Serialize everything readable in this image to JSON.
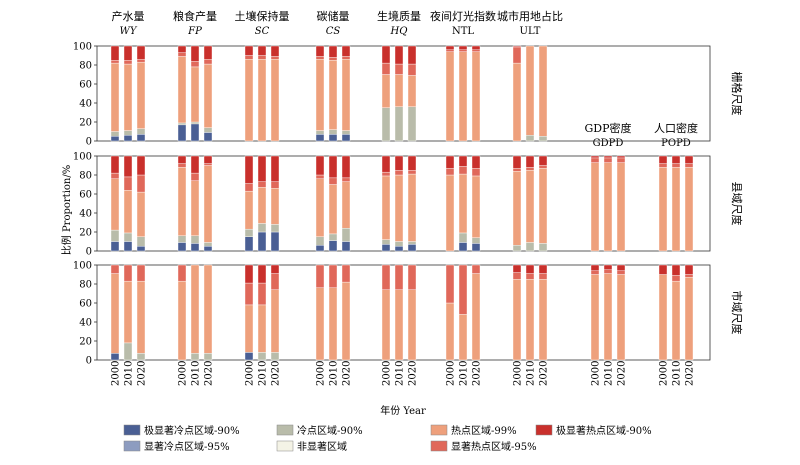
{
  "chart_data": {
    "type": "bar",
    "subtype": "stacked-100",
    "xlabel": "年份 Year",
    "ylabel": "比例 Proportion/%",
    "ylim": [
      0,
      100
    ],
    "yticks": [
      "0",
      "20",
      "40",
      "60",
      "80",
      "100"
    ],
    "years": [
      "2000",
      "2010",
      "2020"
    ],
    "categories_order": [
      "vhc",
      "cold",
      "ns",
      "hot",
      "shot",
      "vhh"
    ],
    "legend": [
      {
        "key": "vhc",
        "label": "极显著冷点区域-90%",
        "color": "#4a5f94"
      },
      {
        "key": "cold",
        "label": "冷点区域-90%",
        "color": "#b9bcaa"
      },
      {
        "key": "hot",
        "label": "热点区域-99%",
        "color": "#eea07c"
      },
      {
        "key": "vhh",
        "label": "极显著热点区域-90%",
        "color": "#c9302c"
      },
      {
        "key": "shc",
        "label": "显著冷点区域-95%",
        "color": "#8d9cc0"
      },
      {
        "key": "ns",
        "label": "非显著区域",
        "color": "#f4f3e6"
      },
      {
        "key": "shot",
        "label": "显著热点区域-95%",
        "color": "#e0685a"
      }
    ],
    "colors": {
      "vhc": "#4a5f94",
      "cold": "#b9bcaa",
      "ns": "#f4f3e6",
      "hot": "#eea07c",
      "shot": "#e0685a",
      "vhh": "#c9302c"
    },
    "columns": [
      {
        "id": "wy",
        "title": "产水量",
        "sub": "WY",
        "italic": true
      },
      {
        "id": "fp",
        "title": "粮食产量",
        "sub": "FP",
        "italic": true
      },
      {
        "id": "sc",
        "title": "土壤保持量",
        "sub": "SC",
        "italic": true
      },
      {
        "id": "cs",
        "title": "碳储量",
        "sub": "CS",
        "italic": true
      },
      {
        "id": "hq",
        "title": "生境质量",
        "sub": "HQ",
        "italic": true
      },
      {
        "id": "ntl",
        "title": "夜间灯光指数",
        "sub": "NTL",
        "italic": false
      },
      {
        "id": "ult",
        "title": "城市用地占比",
        "sub": "ULT",
        "italic": false
      },
      {
        "id": "gdpd",
        "title": "GDP密度",
        "sub": "GDPD",
        "italic": false
      },
      {
        "id": "popd",
        "title": "人口密度",
        "sub": "POPD",
        "italic": false
      }
    ],
    "rows": [
      {
        "id": "grid",
        "label": "栅格尺度"
      },
      {
        "id": "county",
        "label": "县域尺度"
      },
      {
        "id": "city",
        "label": "市域尺度"
      }
    ],
    "data": {
      "grid": {
        "wy": [
          [
            5,
            5,
            0,
            72,
            3,
            15
          ],
          [
            6,
            5,
            0,
            70,
            4,
            15
          ],
          [
            7,
            6,
            0,
            70,
            3,
            14
          ]
        ],
        "fp": [
          [
            17,
            2,
            0,
            70,
            4,
            7
          ],
          [
            18,
            2,
            0,
            58,
            6,
            16
          ],
          [
            9,
            5,
            0,
            67,
            5,
            14
          ]
        ],
        "sc": [
          [
            0,
            0,
            0,
            86,
            4,
            10
          ],
          [
            0,
            0,
            0,
            86,
            4,
            10
          ],
          [
            0,
            0,
            0,
            86,
            3,
            11
          ]
        ],
        "cs": [
          [
            7,
            4,
            0,
            75,
            3,
            11
          ],
          [
            7,
            5,
            0,
            73,
            3,
            12
          ],
          [
            7,
            4,
            0,
            75,
            3,
            11
          ]
        ],
        "hq": [
          [
            0,
            35,
            0,
            35,
            12,
            18
          ],
          [
            0,
            36,
            0,
            34,
            11,
            19
          ],
          [
            0,
            36,
            0,
            33,
            12,
            19
          ]
        ],
        "ntl": [
          [
            0,
            0,
            0,
            94,
            2,
            4
          ],
          [
            0,
            0,
            0,
            94,
            2,
            4
          ],
          [
            0,
            0,
            0,
            94,
            2,
            4
          ]
        ],
        "ult": [
          [
            0,
            0,
            0,
            82,
            17,
            1
          ],
          [
            0,
            6,
            0,
            94,
            0,
            0
          ],
          [
            0,
            5,
            0,
            95,
            0,
            0
          ]
        ]
      },
      "county": {
        "wy": [
          [
            10,
            12,
            0,
            54,
            6,
            18
          ],
          [
            10,
            9,
            0,
            45,
            14,
            22
          ],
          [
            5,
            10,
            0,
            47,
            18,
            20
          ]
        ],
        "fp": [
          [
            9,
            7,
            0,
            72,
            4,
            8
          ],
          [
            8,
            8,
            0,
            58,
            8,
            18
          ],
          [
            5,
            4,
            0,
            81,
            2,
            8
          ]
        ],
        "sc": [
          [
            15,
            8,
            0,
            40,
            8,
            29
          ],
          [
            20,
            9,
            0,
            38,
            6,
            27
          ],
          [
            20,
            8,
            0,
            38,
            7,
            27
          ]
        ],
        "cs": [
          [
            6,
            9,
            0,
            61,
            4,
            20
          ],
          [
            11,
            7,
            0,
            52,
            7,
            23
          ],
          [
            10,
            14,
            0,
            49,
            4,
            23
          ]
        ],
        "hq": [
          [
            7,
            5,
            0,
            67,
            4,
            17
          ],
          [
            5,
            5,
            0,
            70,
            5,
            15
          ],
          [
            7,
            3,
            0,
            71,
            4,
            15
          ]
        ],
        "ntl": [
          [
            0,
            0,
            0,
            80,
            7,
            13
          ],
          [
            9,
            10,
            0,
            62,
            8,
            11
          ],
          [
            8,
            6,
            0,
            65,
            8,
            13
          ]
        ],
        "ult": [
          [
            0,
            6,
            0,
            78,
            3,
            13
          ],
          [
            0,
            9,
            0,
            76,
            3,
            12
          ],
          [
            0,
            8,
            0,
            79,
            3,
            10
          ]
        ],
        "gdpd": [
          [
            0,
            0,
            0,
            93,
            5,
            2
          ],
          [
            0,
            0,
            0,
            93,
            5,
            2
          ],
          [
            0,
            0,
            0,
            93,
            5,
            2
          ]
        ],
        "popd": [
          [
            0,
            0,
            0,
            88,
            4,
            8
          ],
          [
            0,
            0,
            0,
            88,
            4,
            8
          ],
          [
            0,
            0,
            0,
            88,
            4,
            8
          ]
        ]
      },
      "city": {
        "wy": [
          [
            7,
            0,
            0,
            84,
            9,
            0
          ],
          [
            0,
            18,
            0,
            65,
            17,
            0
          ],
          [
            0,
            7,
            0,
            76,
            17,
            0
          ]
        ],
        "fp": [
          [
            0,
            0,
            0,
            83,
            17,
            0
          ],
          [
            0,
            7,
            0,
            93,
            0,
            0
          ],
          [
            0,
            7,
            0,
            93,
            0,
            0
          ]
        ],
        "sc": [
          [
            8,
            0,
            0,
            50,
            23,
            19
          ],
          [
            0,
            8,
            0,
            50,
            23,
            19
          ],
          [
            0,
            8,
            0,
            66,
            17,
            9
          ]
        ],
        "cs": [
          [
            0,
            0,
            0,
            76,
            24,
            0
          ],
          [
            0,
            0,
            0,
            76,
            24,
            0
          ],
          [
            0,
            0,
            0,
            82,
            18,
            0
          ]
        ],
        "hq": [
          [
            0,
            0,
            0,
            74,
            26,
            0
          ],
          [
            0,
            0,
            0,
            74,
            26,
            0
          ],
          [
            0,
            0,
            0,
            74,
            26,
            0
          ]
        ],
        "ntl": [
          [
            0,
            0,
            0,
            60,
            40,
            0
          ],
          [
            0,
            0,
            0,
            48,
            52,
            0
          ],
          [
            0,
            0,
            0,
            91,
            9,
            0
          ]
        ],
        "ult": [
          [
            0,
            0,
            0,
            85,
            7,
            8
          ],
          [
            0,
            0,
            0,
            85,
            6,
            9
          ],
          [
            0,
            0,
            0,
            85,
            6,
            9
          ]
        ],
        "gdpd": [
          [
            0,
            0,
            0,
            90,
            4,
            6
          ],
          [
            0,
            0,
            0,
            91,
            4,
            5
          ],
          [
            0,
            0,
            0,
            90,
            4,
            6
          ]
        ],
        "popd": [
          [
            0,
            0,
            0,
            90,
            0,
            10
          ],
          [
            0,
            0,
            0,
            83,
            6,
            11
          ],
          [
            0,
            0,
            0,
            87,
            3,
            10
          ]
        ]
      }
    }
  }
}
